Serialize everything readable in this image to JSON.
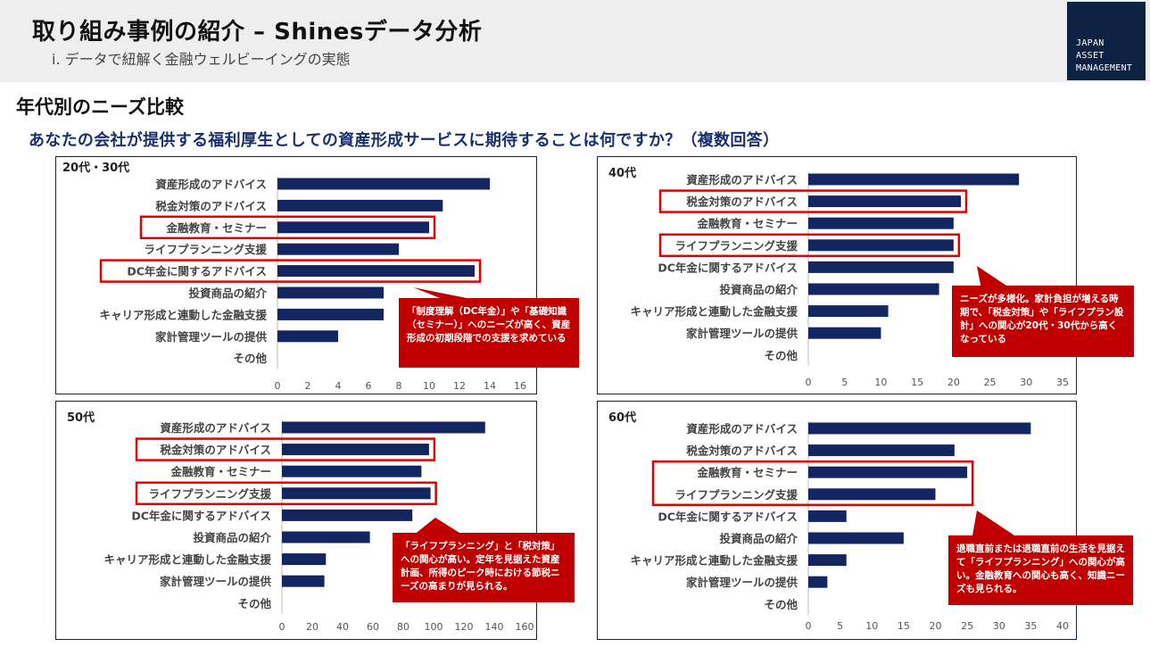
{
  "header": {
    "title": "取り組み事例の紹介 – Shinesデータ分析",
    "subtitle": "ⅰ. データで紐解く金融ウェルビーイングの実態",
    "logo_lines": [
      "JAPAN",
      "ASSET",
      "MANAGEMENT"
    ]
  },
  "section_title": "年代別のニーズ比較",
  "question": "あなたの会社が提供する福利厚生としての資産形成サービスに期待することは何ですか？（複数回答）",
  "colors": {
    "bar": "#142661",
    "highlight": "#e00000",
    "callout": "#c00000",
    "axis_text": "#555555"
  },
  "chart_data": [
    {
      "id": "20s",
      "type": "bar",
      "orientation": "horizontal",
      "title": "20代・30代",
      "categories": [
        "資産形成のアドバイス",
        "税金対策のアドバイス",
        "金融教育・セミナー",
        "ライフプランニング支援",
        "DC年金に関するアドバイス",
        "投資商品の紹介",
        "キャリア形成と連動した金融支援",
        "家計管理ツールの提供",
        "その他"
      ],
      "values": [
        14,
        10.9,
        10,
        8,
        13,
        7,
        7,
        4,
        0
      ],
      "xlim": [
        0,
        16
      ],
      "ticks": [
        0,
        2,
        4,
        6,
        8,
        10,
        12,
        14,
        16
      ],
      "highlights": [
        [
          2,
          2
        ],
        [
          4,
          4
        ]
      ],
      "callout": "「制度理解（DC年金）」や「基礎知識（セミナー）」へのニーズが高く、資産形成の初期段階での支援を求めている"
    },
    {
      "id": "40s",
      "type": "bar",
      "orientation": "horizontal",
      "title": "40代",
      "categories": [
        "資産形成のアドバイス",
        "税金対策のアドバイス",
        "金融教育・セミナー",
        "ライフプランニング支援",
        "DC年金に関するアドバイス",
        "投資商品の紹介",
        "キャリア形成と連動した金融支援",
        "家計管理ツールの提供",
        "その他"
      ],
      "values": [
        29,
        21,
        20,
        20,
        20,
        18,
        11,
        10,
        0
      ],
      "xlim": [
        0,
        35
      ],
      "ticks": [
        0,
        5,
        10,
        15,
        20,
        25,
        30,
        35
      ],
      "highlights": [
        [
          1,
          1
        ],
        [
          3,
          3
        ]
      ],
      "callout": "ニーズが多様化。家計負担が増える時期で、「税金対策」や「ライフプラン設計」への関心が20代・30代から高くなっている"
    },
    {
      "id": "50s",
      "type": "bar",
      "orientation": "horizontal",
      "title": "50代",
      "categories": [
        "資産形成のアドバイス",
        "税金対策のアドバイス",
        "金融教育・セミナー",
        "ライフプランニング支援",
        "DC年金に関するアドバイス",
        "投資商品の紹介",
        "キャリア形成と連動した金融支援",
        "家計管理ツールの提供",
        "その他"
      ],
      "values": [
        134,
        97,
        92,
        98,
        86,
        58,
        29,
        28,
        0
      ],
      "xlim": [
        0,
        160
      ],
      "ticks": [
        0,
        20,
        40,
        60,
        80,
        100,
        120,
        140,
        160
      ],
      "highlights": [
        [
          1,
          1
        ],
        [
          3,
          3
        ]
      ],
      "callout": "「ライフプランニング」と「税対策」への関心が高い。定年を見据えた資産計画、所得のピーク時における節税ニーズの高まりが見られる。"
    },
    {
      "id": "60s",
      "type": "bar",
      "orientation": "horizontal",
      "title": "60代",
      "categories": [
        "資産形成のアドバイス",
        "税金対策のアドバイス",
        "金融教育・セミナー",
        "ライフプランニング支援",
        "DC年金に関するアドバイス",
        "投資商品の紹介",
        "キャリア形成と連動した金融支援",
        "家計管理ツールの提供",
        "その他"
      ],
      "values": [
        35,
        23,
        25,
        20,
        6,
        15,
        6,
        3,
        0
      ],
      "xlim": [
        0,
        40
      ],
      "ticks": [
        0,
        5,
        10,
        15,
        20,
        25,
        30,
        35,
        40
      ],
      "highlights": [
        [
          2,
          3
        ]
      ],
      "callout": "退職直前または退職直前の生活を見据えて「ライフプランニング」への関心が高い。金融教育への関心も高く、知識ニーズも見られる。"
    }
  ]
}
